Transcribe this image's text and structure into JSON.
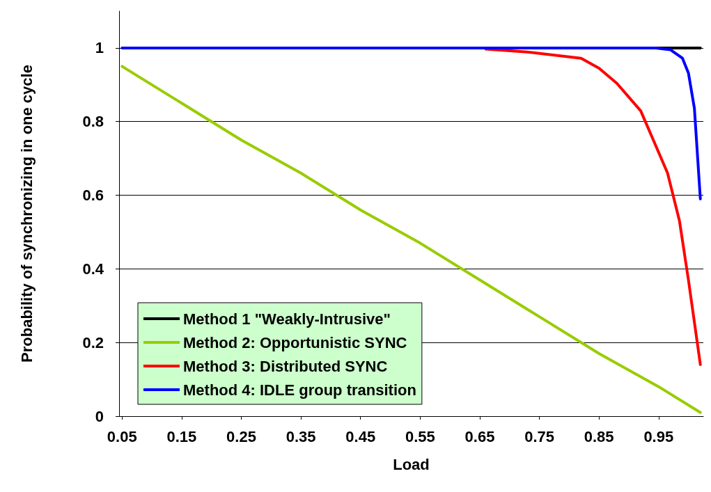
{
  "chart_data": {
    "type": "line",
    "xlabel": "Load",
    "ylabel": "Probability of synchronizing in one cycle",
    "xlim": [
      0.045,
      1.025
    ],
    "xticks": [
      0.05,
      0.15,
      0.25,
      0.35,
      0.45,
      0.55,
      0.65,
      0.75,
      0.85,
      0.95
    ],
    "ylim": [
      0,
      1.1
    ],
    "yticks": [
      0,
      0.2,
      0.4,
      0.6,
      0.8,
      1
    ],
    "grid": "y",
    "legend": "bottom left",
    "marker": "none",
    "line_style": "solid",
    "series": [
      {
        "name": "Method 1 \"Weakly-Intrusive\"",
        "color": "#000000",
        "x": [
          0.945,
          1.02
        ],
        "values": [
          1,
          1
        ]
      },
      {
        "name": "Method 2: Opportunistic SYNC",
        "color": "#99cc00",
        "x": [
          0.05,
          0.15,
          0.25,
          0.35,
          0.45,
          0.55,
          0.65,
          0.75,
          0.85,
          0.95,
          1.02
        ],
        "values": [
          0.95,
          0.85,
          0.75,
          0.66,
          0.56,
          0.47,
          0.37,
          0.27,
          0.17,
          0.08,
          0.01
        ]
      },
      {
        "name": "Method 3: Distributed SYNC",
        "color": "#ff0000",
        "x": [
          0.66,
          0.73,
          0.82,
          0.85,
          0.88,
          0.92,
          0.94,
          0.965,
          0.985,
          1.0,
          1.02
        ],
        "values": [
          0.997,
          0.989,
          0.972,
          0.945,
          0.904,
          0.829,
          0.754,
          0.66,
          0.53,
          0.37,
          0.14
        ]
      },
      {
        "name": "Method 4: IDLE group transition",
        "color": "#0000ff",
        "x": [
          0.05,
          0.945,
          0.97,
          0.99,
          1.0,
          1.01,
          1.02
        ],
        "values": [
          1,
          1,
          0.995,
          0.972,
          0.932,
          0.836,
          0.59
        ]
      }
    ]
  }
}
